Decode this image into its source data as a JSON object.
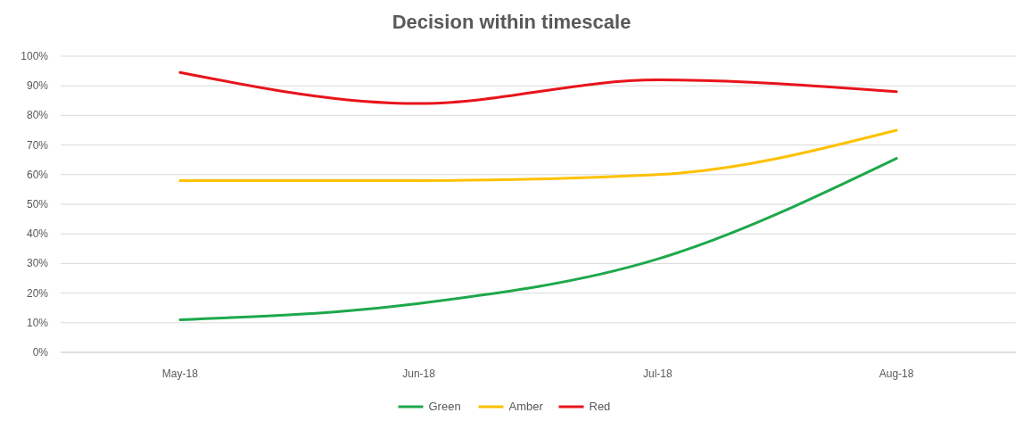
{
  "chart_data": {
    "type": "line",
    "title": "Decision within timescale",
    "categories": [
      "May-18",
      "Jun-18",
      "Jul-18",
      "Aug-18"
    ],
    "series": [
      {
        "name": "Green",
        "color": "#1ea84b",
        "values": [
          11,
          16.5,
          31.5,
          65.5
        ]
      },
      {
        "name": "Amber",
        "color": "#ffc000",
        "values": [
          58,
          58,
          60,
          75
        ]
      },
      {
        "name": "Red",
        "color": "#e8141b",
        "values": [
          94.5,
          84,
          92,
          88
        ]
      }
    ],
    "ylim": [
      0,
      100
    ],
    "yticks": [
      {
        "value": 0,
        "label": "0%"
      },
      {
        "value": 10,
        "label": "10%"
      },
      {
        "value": 20,
        "label": "20%"
      },
      {
        "value": 30,
        "label": "30%"
      },
      {
        "value": 40,
        "label": "40%"
      },
      {
        "value": 50,
        "label": "50%"
      },
      {
        "value": 60,
        "label": "60%"
      },
      {
        "value": 70,
        "label": "70%"
      },
      {
        "value": 80,
        "label": "80%"
      },
      {
        "value": 90,
        "label": "90%"
      },
      {
        "value": 100,
        "label": "100%"
      }
    ],
    "grid": "y",
    "legend": "bottom",
    "marker": "none",
    "line_style": "solid"
  }
}
